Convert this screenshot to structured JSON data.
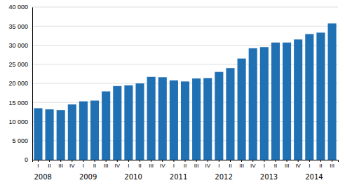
{
  "chart_data": {
    "type": "bar",
    "categories": [
      "I",
      "II",
      "III",
      "IV",
      "I",
      "II",
      "III",
      "IV",
      "I",
      "II",
      "III",
      "IV",
      "I",
      "II",
      "III",
      "IV",
      "I",
      "II",
      "III",
      "IV",
      "I",
      "II",
      "III",
      "IV",
      "I",
      "II",
      "III"
    ],
    "values": [
      13500,
      13200,
      13000,
      14500,
      15300,
      15500,
      17900,
      19300,
      19500,
      20000,
      21700,
      21600,
      20800,
      20500,
      21300,
      21400,
      23000,
      24000,
      26500,
      29200,
      29500,
      30700,
      30700,
      31500,
      32900,
      33300,
      35700
    ],
    "color": "#2070b4",
    "ylim": [
      0,
      40000
    ],
    "yticks": [
      0,
      {
        "value": 5000,
        "label": "5 000"
      },
      {
        "value": 10000,
        "label": "10 000"
      },
      {
        "value": 15000,
        "label": "15 000"
      },
      {
        "value": 20000,
        "label": "20 000"
      },
      {
        "value": 25000,
        "label": "25 000"
      },
      {
        "value": 30000,
        "label": "30 000"
      },
      {
        "value": 35000,
        "label": "35 000"
      },
      {
        "value": 40000,
        "label": "40 000"
      }
    ],
    "grid": true,
    "annotations": [
      {
        "text": "2008",
        "x": 0
      },
      {
        "text": "2009",
        "x": 4
      },
      {
        "text": "2010",
        "x": 8
      },
      {
        "text": "2011",
        "x": 12
      },
      {
        "text": "2012",
        "x": 16
      },
      {
        "text": "2013",
        "x": 20
      },
      {
        "text": "2014",
        "x": 24
      }
    ]
  }
}
